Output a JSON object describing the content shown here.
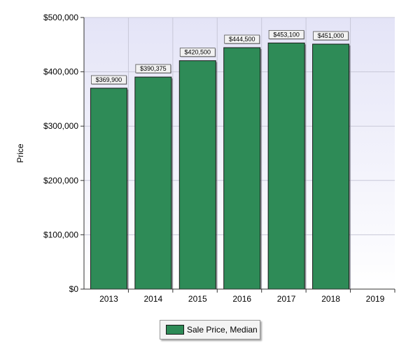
{
  "chart_data": {
    "type": "bar",
    "title": "",
    "xlabel": "",
    "ylabel": "Price",
    "categories": [
      "2013",
      "2014",
      "2015",
      "2016",
      "2017",
      "2018"
    ],
    "x_ticks": [
      "2013",
      "2014",
      "2015",
      "2016",
      "2017",
      "2018",
      "2019"
    ],
    "series": [
      {
        "name": "Sale Price, Median",
        "values": [
          369900,
          390375,
          420500,
          444500,
          453100,
          451000
        ],
        "labels": [
          "$369,900",
          "$390,375",
          "$420,500",
          "$444,500",
          "$453,100",
          "$451,000"
        ],
        "color": "#2e8b57"
      }
    ],
    "ylim": [
      0,
      500000
    ],
    "y_ticks": [
      0,
      100000,
      200000,
      300000,
      400000,
      500000
    ],
    "y_tick_labels": [
      "$0",
      "$100,000",
      "$200,000",
      "$300,000",
      "$400,000",
      "$500,000"
    ],
    "grid": true,
    "legend_position": "bottom-center",
    "colors": {
      "bar": "#2e8b57",
      "plot_background_top": "#e6e6f8",
      "plot_background_bottom": "#ffffff",
      "gridline": "#c8c8d8"
    }
  }
}
